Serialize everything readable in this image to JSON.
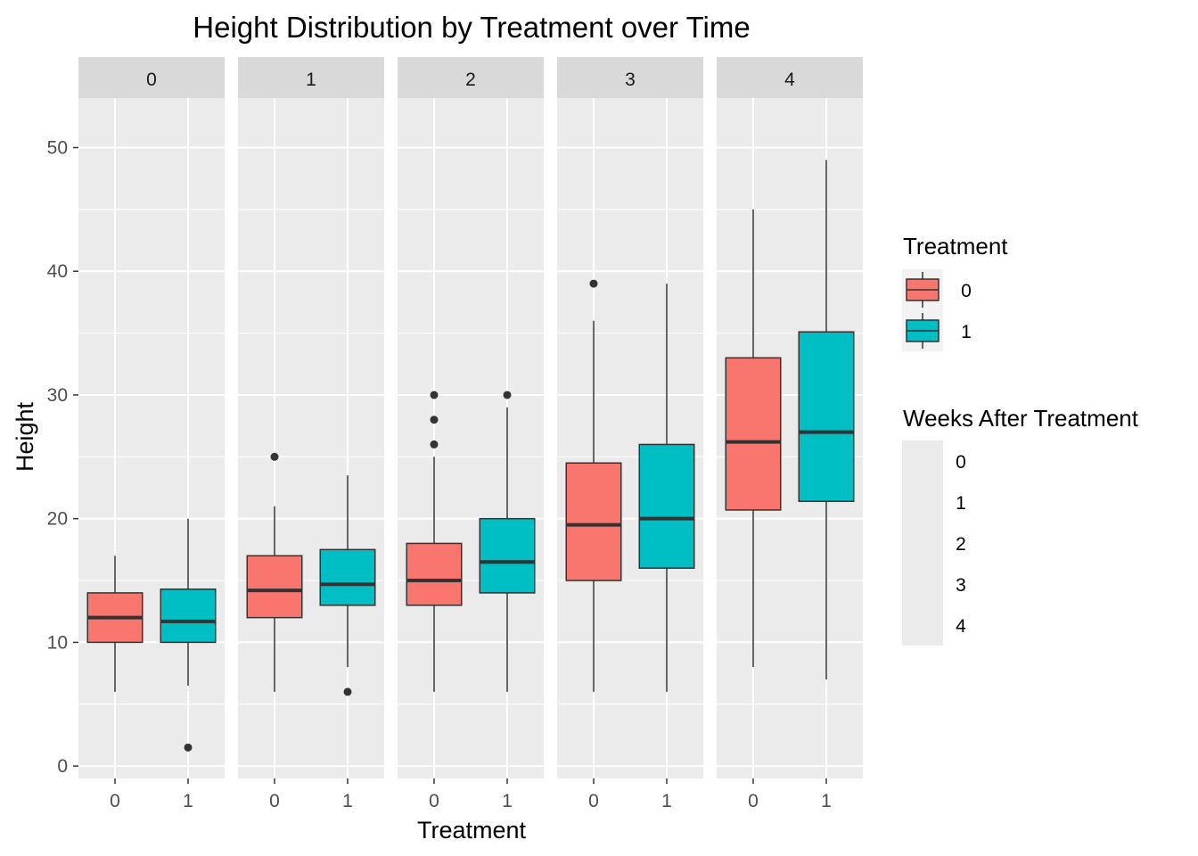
{
  "chart_data": {
    "type": "box",
    "title": "Height Distribution by Treatment over Time",
    "xlabel": "Treatment",
    "ylabel": "Height",
    "ylim": [
      -1,
      54
    ],
    "y_ticks": [
      0,
      10,
      20,
      30,
      40,
      50
    ],
    "categories": [
      "0",
      "1"
    ],
    "facet_labels": [
      "0",
      "1",
      "2",
      "3",
      "4"
    ],
    "grid": true,
    "colors": {
      "0": "#F8766D",
      "1": "#00BFC4"
    },
    "legend_treatment": {
      "title": "Treatment",
      "entries": [
        "0",
        "1"
      ],
      "placement": "right"
    },
    "legend_weeks": {
      "title": "Weeks After Treatment",
      "entries": [
        "0",
        "1",
        "2",
        "3",
        "4"
      ],
      "placement": "right"
    },
    "facets": [
      {
        "label": "0",
        "boxes": [
          {
            "treatment": "0",
            "lower": 6,
            "q1": 10,
            "median": 12,
            "q3": 14,
            "upper": 17,
            "outliers": []
          },
          {
            "treatment": "1",
            "lower": 6.5,
            "q1": 10,
            "median": 11.7,
            "q3": 14.3,
            "upper": 20,
            "outliers": [
              1.5
            ]
          }
        ]
      },
      {
        "label": "1",
        "boxes": [
          {
            "treatment": "0",
            "lower": 6,
            "q1": 12,
            "median": 14.2,
            "q3": 17,
            "upper": 21,
            "outliers": [
              25
            ]
          },
          {
            "treatment": "1",
            "lower": 8,
            "q1": 13,
            "median": 14.7,
            "q3": 17.5,
            "upper": 23.5,
            "outliers": [
              6
            ]
          }
        ]
      },
      {
        "label": "2",
        "boxes": [
          {
            "treatment": "0",
            "lower": 6,
            "q1": 13,
            "median": 15,
            "q3": 18,
            "upper": 25,
            "outliers": [
              26,
              28,
              30
            ]
          },
          {
            "treatment": "1",
            "lower": 6,
            "q1": 14,
            "median": 16.5,
            "q3": 20,
            "upper": 29,
            "outliers": [
              30
            ]
          }
        ]
      },
      {
        "label": "3",
        "boxes": [
          {
            "treatment": "0",
            "lower": 6,
            "q1": 15,
            "median": 19.5,
            "q3": 24.5,
            "upper": 36,
            "outliers": [
              39
            ]
          },
          {
            "treatment": "1",
            "lower": 6,
            "q1": 16,
            "median": 20,
            "q3": 26,
            "upper": 39,
            "outliers": []
          }
        ]
      },
      {
        "label": "4",
        "boxes": [
          {
            "treatment": "0",
            "lower": 8,
            "q1": 20.7,
            "median": 26.2,
            "q3": 33,
            "upper": 45,
            "outliers": []
          },
          {
            "treatment": "1",
            "lower": 7,
            "q1": 21.4,
            "median": 27,
            "q3": 35.1,
            "upper": 49,
            "outliers": []
          }
        ]
      }
    ]
  }
}
